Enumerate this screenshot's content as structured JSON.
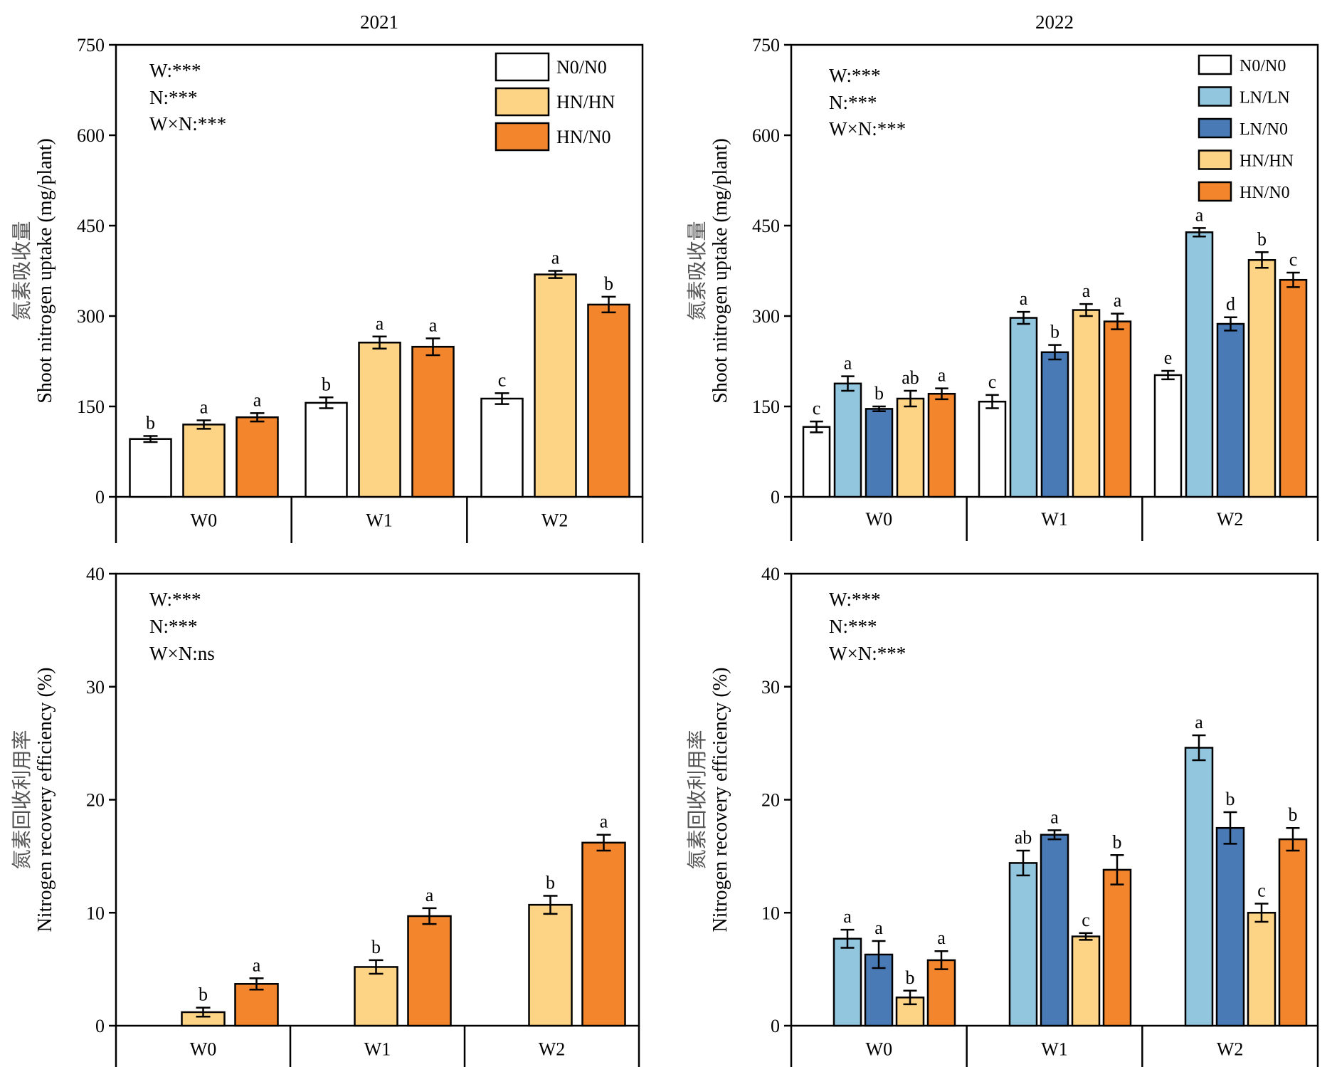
{
  "colors": {
    "N0/N0": "#ffffff",
    "LN/LN": "#92c5de",
    "LN/N0": "#4a7ab5",
    "HN/HN": "#fdd385",
    "HN/N0": "#f3852d"
  },
  "chart_data": [
    {
      "type": "bar",
      "panel": "top-left",
      "title": "2021",
      "ylabel": "Shoot nitrogen uptake (mg/plant)",
      "ylabel_cn": "氮素吸收量",
      "ylim": [
        0,
        750
      ],
      "yticks": [
        0,
        150,
        300,
        450,
        600,
        750
      ],
      "categories": [
        "W0",
        "W1",
        "W2"
      ],
      "stats": [
        "W:***",
        "N:***",
        "W×N:***"
      ],
      "legend": [
        "N0/N0",
        "HN/HN",
        "HN/N0"
      ],
      "legend_position": "top-right",
      "series": [
        {
          "name": "N0/N0",
          "values": [
            96,
            156,
            163
          ],
          "errors": [
            5,
            9,
            9
          ],
          "letters": [
            "b",
            "b",
            "c"
          ]
        },
        {
          "name": "HN/HN",
          "values": [
            120,
            256,
            369
          ],
          "errors": [
            7,
            10,
            6
          ],
          "letters": [
            "a",
            "a",
            "a"
          ]
        },
        {
          "name": "HN/N0",
          "values": [
            132,
            249,
            319
          ],
          "errors": [
            7,
            14,
            13
          ],
          "letters": [
            "a",
            "a",
            "b"
          ]
        }
      ]
    },
    {
      "type": "bar",
      "panel": "top-right",
      "title": "2022",
      "ylabel": "Shoot nitrogen uptake (mg/plant)",
      "ylabel_cn": "氮素吸收量",
      "ylim": [
        0,
        750
      ],
      "yticks": [
        0,
        150,
        300,
        450,
        600,
        750
      ],
      "categories": [
        "W0",
        "W1",
        "W2"
      ],
      "stats": [
        "W:***",
        "N:***",
        "W×N:***"
      ],
      "legend": [
        "N0/N0",
        "LN/LN",
        "LN/N0",
        "HN/HN",
        "HN/N0"
      ],
      "legend_position": "top-right",
      "series": [
        {
          "name": "N0/N0",
          "values": [
            116,
            158,
            202
          ],
          "errors": [
            9,
            11,
            7
          ],
          "letters": [
            "c",
            "c",
            "e"
          ]
        },
        {
          "name": "LN/LN",
          "values": [
            188,
            297,
            439
          ],
          "errors": [
            12,
            10,
            7
          ],
          "letters": [
            "a",
            "a",
            "a"
          ]
        },
        {
          "name": "LN/N0",
          "values": [
            146,
            240,
            287
          ],
          "errors": [
            4,
            12,
            11
          ],
          "letters": [
            "b",
            "b",
            "d"
          ]
        },
        {
          "name": "HN/HN",
          "values": [
            163,
            310,
            393
          ],
          "errors": [
            13,
            10,
            13
          ],
          "letters": [
            "ab",
            "a",
            "b"
          ]
        },
        {
          "name": "HN/N0",
          "values": [
            171,
            291,
            360
          ],
          "errors": [
            9,
            13,
            12
          ],
          "letters": [
            "a",
            "a",
            "c"
          ]
        }
      ]
    },
    {
      "type": "bar",
      "panel": "bottom-left",
      "title": "",
      "ylabel": "Nitrogen recovery efficiency (%)",
      "ylabel_cn": "氮素回收利用率",
      "ylim": [
        0,
        40
      ],
      "yticks": [
        0,
        10,
        20,
        30,
        40
      ],
      "categories": [
        "W0",
        "W1",
        "W2"
      ],
      "stats": [
        "W:***",
        "N:***",
        "W×N:ns"
      ],
      "series": [
        {
          "name": "HN/HN",
          "values": [
            1.2,
            5.2,
            10.7
          ],
          "errors": [
            0.4,
            0.6,
            0.8
          ],
          "letters": [
            "b",
            "b",
            "b"
          ]
        },
        {
          "name": "HN/N0",
          "values": [
            3.7,
            9.7,
            16.2
          ],
          "errors": [
            0.5,
            0.7,
            0.7
          ],
          "letters": [
            "a",
            "a",
            "a"
          ]
        }
      ]
    },
    {
      "type": "bar",
      "panel": "bottom-right",
      "title": "",
      "ylabel": "Nitrogen recovery efficiency (%)",
      "ylabel_cn": "氮素回收利用率",
      "ylim": [
        0,
        40
      ],
      "yticks": [
        0,
        10,
        20,
        30,
        40
      ],
      "categories": [
        "W0",
        "W1",
        "W2"
      ],
      "stats": [
        "W:***",
        "N:***",
        "W×N:***"
      ],
      "series": [
        {
          "name": "LN/LN",
          "values": [
            7.7,
            14.4,
            24.6
          ],
          "errors": [
            0.8,
            1.1,
            1.1
          ],
          "letters": [
            "a",
            "ab",
            "a"
          ]
        },
        {
          "name": "LN/N0",
          "values": [
            6.3,
            16.9,
            17.5
          ],
          "errors": [
            1.2,
            0.4,
            1.4
          ],
          "letters": [
            "a",
            "a",
            "b"
          ]
        },
        {
          "name": "HN/HN",
          "values": [
            2.5,
            7.9,
            10.0
          ],
          "errors": [
            0.6,
            0.3,
            0.8
          ],
          "letters": [
            "b",
            "c",
            "c"
          ]
        },
        {
          "name": "HN/N0",
          "values": [
            5.8,
            13.8,
            16.5
          ],
          "errors": [
            0.8,
            1.3,
            1.0
          ],
          "letters": [
            "a",
            "b",
            "b"
          ]
        }
      ]
    }
  ]
}
